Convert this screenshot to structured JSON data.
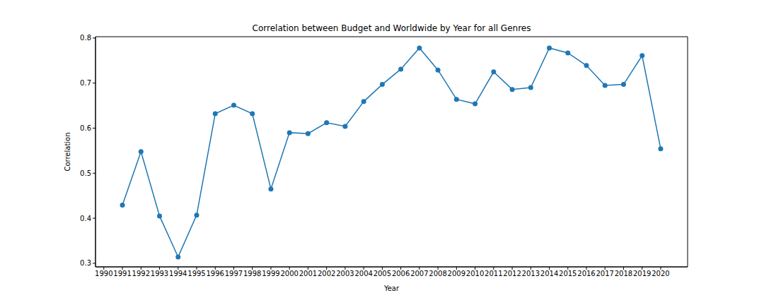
{
  "chart_data": {
    "type": "line",
    "title": "Correlation between Budget and Worldwide by Year for all Genres",
    "x_label": "Year",
    "y_label": "Correlation",
    "x": [
      1991,
      1992,
      1993,
      1994,
      1995,
      1996,
      1997,
      1998,
      1999,
      2000,
      2001,
      2002,
      2003,
      2004,
      2005,
      2006,
      2007,
      2008,
      2009,
      2010,
      2011,
      2012,
      2013,
      2014,
      2015,
      2016,
      2017,
      2018,
      2019,
      2020
    ],
    "values": [
      0.429,
      0.548,
      0.405,
      0.314,
      0.407,
      0.632,
      0.651,
      0.632,
      0.465,
      0.59,
      0.588,
      0.612,
      0.604,
      0.659,
      0.697,
      0.731,
      0.778,
      0.729,
      0.664,
      0.654,
      0.725,
      0.686,
      0.69,
      0.778,
      0.767,
      0.739,
      0.695,
      0.697,
      0.761,
      0.554
    ],
    "color": "#1f77b4",
    "marker": "circle",
    "xlim": [
      1989.55,
      2021.45
    ],
    "ylim": [
      0.292,
      0.803
    ],
    "xticks": [
      1990,
      1991,
      1992,
      1993,
      1994,
      1995,
      1996,
      1997,
      1998,
      1999,
      2000,
      2001,
      2002,
      2003,
      2004,
      2005,
      2006,
      2007,
      2008,
      2009,
      2010,
      2011,
      2012,
      2013,
      2014,
      2015,
      2016,
      2017,
      2018,
      2019,
      2020
    ],
    "yticks": [
      0.3,
      0.4,
      0.5,
      0.6,
      0.7,
      0.8
    ],
    "grid": false
  }
}
